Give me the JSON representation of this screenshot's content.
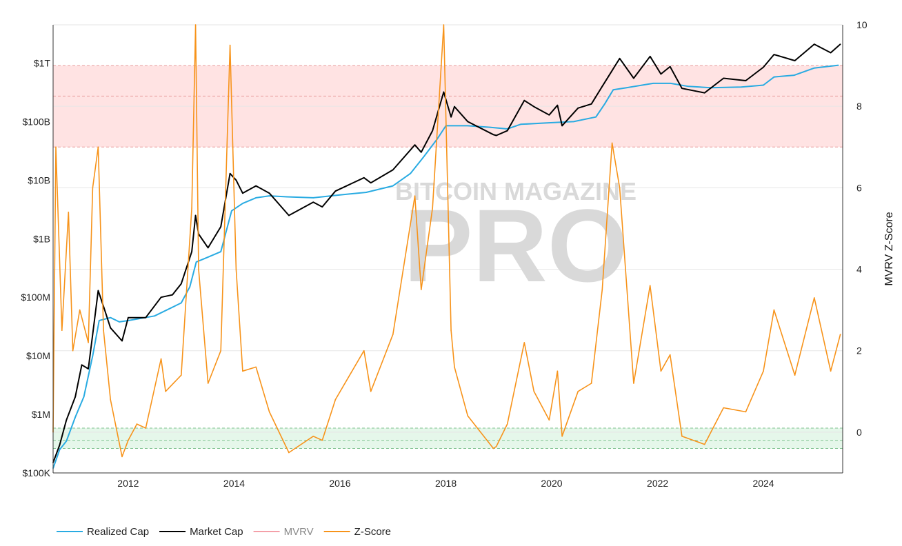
{
  "chart_data": {
    "type": "line",
    "title": "",
    "watermark": {
      "line1": "BITCOIN MAGAZINE",
      "line2": "PRO"
    },
    "x_axis": {
      "type": "date",
      "ticks": [
        "2012",
        "2014",
        "2016",
        "2018",
        "2020",
        "2022",
        "2024"
      ],
      "range": [
        "2010-08-01",
        "2025-07-01"
      ]
    },
    "y_left": {
      "scale": "log",
      "label": "",
      "ticks": [
        "$100K",
        "$1M",
        "$10M",
        "$100M",
        "$1B",
        "$10B",
        "$100B",
        "$1T"
      ],
      "tick_values": [
        100000.0,
        1000000.0,
        10000000.0,
        100000000.0,
        1000000000.0,
        10000000000.0,
        100000000000.0,
        1000000000000.0
      ],
      "range": [
        100000.0,
        4500000000000.0
      ]
    },
    "y_right": {
      "scale": "linear",
      "label": "MVRV Z-Score",
      "ticks": [
        "0",
        "2",
        "4",
        "6",
        "8",
        "10"
      ],
      "tick_values": [
        0,
        2,
        4,
        6,
        8,
        10
      ],
      "range": [
        -1,
        10
      ]
    },
    "bands": [
      {
        "axis": "right",
        "from": 7.0,
        "to": 9.0,
        "color": "#ffe3e3",
        "line_color": "#e89b9b",
        "lines": [
          7.0,
          8.25,
          9.0
        ]
      },
      {
        "axis": "right",
        "from": -0.4,
        "to": 0.1,
        "color": "#e5f7ea",
        "line_color": "#7fc28f",
        "lines": [
          -0.4,
          -0.2,
          0.1
        ]
      }
    ],
    "grid": true,
    "legend": {
      "position": "bottom-left",
      "items": [
        {
          "label": "Realized Cap",
          "color": "#29abe2",
          "visible": true
        },
        {
          "label": "Market Cap",
          "color": "#000000",
          "visible": true
        },
        {
          "label": "MVRV",
          "color": "#f4a0a8",
          "visible": false
        },
        {
          "label": "Z-Score",
          "color": "#f7931a",
          "visible": true
        }
      ]
    },
    "series": [
      {
        "name": "Realized Cap",
        "axis": "left",
        "color": "#29abe2",
        "points": [
          [
            "2010-08-01",
            120000.0
          ],
          [
            "2010-09-15",
            250000.0
          ],
          [
            "2010-11-01",
            350000.0
          ],
          [
            "2011-01-01",
            900000.0
          ],
          [
            "2011-03-01",
            2000000.0
          ],
          [
            "2011-05-01",
            10000000.0
          ],
          [
            "2011-06-15",
            40000000.0
          ],
          [
            "2011-09-01",
            45000000.0
          ],
          [
            "2011-11-01",
            38000000.0
          ],
          [
            "2012-01-01",
            40000000.0
          ],
          [
            "2012-07-01",
            48000000.0
          ],
          [
            "2013-01-01",
            80000000.0
          ],
          [
            "2013-03-01",
            150000000.0
          ],
          [
            "2013-04-15",
            400000000.0
          ],
          [
            "2013-07-01",
            480000000.0
          ],
          [
            "2013-10-01",
            600000000.0
          ],
          [
            "2013-12-15",
            3000000000.0
          ],
          [
            "2014-03-01",
            4000000000.0
          ],
          [
            "2014-06-01",
            5000000000.0
          ],
          [
            "2014-09-01",
            5400000000.0
          ],
          [
            "2015-01-01",
            5200000000.0
          ],
          [
            "2015-07-01",
            5000000000.0
          ],
          [
            "2016-01-01",
            5600000000.0
          ],
          [
            "2016-07-01",
            6200000000.0
          ],
          [
            "2017-01-01",
            8000000000.0
          ],
          [
            "2017-05-01",
            13000000000.0
          ],
          [
            "2017-08-01",
            25000000000.0
          ],
          [
            "2017-11-01",
            50000000000.0
          ],
          [
            "2018-01-01",
            85000000000.0
          ],
          [
            "2018-06-01",
            85000000000.0
          ],
          [
            "2018-11-01",
            80000000000.0
          ],
          [
            "2019-03-01",
            75000000000.0
          ],
          [
            "2019-06-01",
            90000000000.0
          ],
          [
            "2019-12-01",
            95000000000.0
          ],
          [
            "2020-06-01",
            100000000000.0
          ],
          [
            "2020-11-01",
            120000000000.0
          ],
          [
            "2021-01-01",
            200000000000.0
          ],
          [
            "2021-03-01",
            350000000000.0
          ],
          [
            "2021-06-01",
            380000000000.0
          ],
          [
            "2021-12-01",
            450000000000.0
          ],
          [
            "2022-04-01",
            450000000000.0
          ],
          [
            "2022-08-01",
            400000000000.0
          ],
          [
            "2023-01-01",
            380000000000.0
          ],
          [
            "2023-08-01",
            390000000000.0
          ],
          [
            "2024-01-01",
            420000000000.0
          ],
          [
            "2024-03-15",
            580000000000.0
          ],
          [
            "2024-08-01",
            620000000000.0
          ],
          [
            "2024-12-15",
            820000000000.0
          ],
          [
            "2025-06-01",
            920000000000.0
          ]
        ]
      },
      {
        "name": "Market Cap",
        "axis": "left",
        "color": "#000000",
        "points": [
          [
            "2010-08-01",
            150000.0
          ],
          [
            "2010-09-15",
            300000.0
          ],
          [
            "2010-11-01",
            800000.0
          ],
          [
            "2011-01-01",
            2000000.0
          ],
          [
            "2011-02-15",
            7000000.0
          ],
          [
            "2011-04-01",
            6000000.0
          ],
          [
            "2011-06-08",
            130000000.0
          ],
          [
            "2011-07-15",
            70000000.0
          ],
          [
            "2011-09-01",
            30000000.0
          ],
          [
            "2011-11-20",
            18000000.0
          ],
          [
            "2012-01-01",
            45000000.0
          ],
          [
            "2012-05-01",
            45000000.0
          ],
          [
            "2012-08-15",
            100000000.0
          ],
          [
            "2012-11-01",
            110000000.0
          ],
          [
            "2013-01-01",
            170000000.0
          ],
          [
            "2013-03-15",
            600000000.0
          ],
          [
            "2013-04-10",
            2500000000.0
          ],
          [
            "2013-05-01",
            1200000000.0
          ],
          [
            "2013-07-05",
            700000000.0
          ],
          [
            "2013-10-01",
            1600000000.0
          ],
          [
            "2013-12-04",
            13000000000.0
          ],
          [
            "2014-01-15",
            10000000000.0
          ],
          [
            "2014-03-01",
            6000000000.0
          ],
          [
            "2014-06-01",
            8000000000.0
          ],
          [
            "2014-09-01",
            6000000000.0
          ],
          [
            "2015-01-14",
            2500000000.0
          ],
          [
            "2015-07-01",
            4200000000.0
          ],
          [
            "2015-09-01",
            3500000000.0
          ],
          [
            "2015-12-01",
            6500000000.0
          ],
          [
            "2016-06-15",
            11000000000.0
          ],
          [
            "2016-08-01",
            9000000000.0
          ],
          [
            "2017-01-01",
            15000000000.0
          ],
          [
            "2017-06-01",
            40000000000.0
          ],
          [
            "2017-07-15",
            30000000000.0
          ],
          [
            "2017-10-01",
            70000000000.0
          ],
          [
            "2017-12-17",
            320000000000.0
          ],
          [
            "2018-02-06",
            120000000000.0
          ],
          [
            "2018-03-01",
            180000000000.0
          ],
          [
            "2018-06-01",
            100000000000.0
          ],
          [
            "2018-11-25",
            60000000000.0
          ],
          [
            "2018-12-15",
            58000000000.0
          ],
          [
            "2019-03-01",
            70000000000.0
          ],
          [
            "2019-06-26",
            230000000000.0
          ],
          [
            "2019-09-01",
            180000000000.0
          ],
          [
            "2019-12-15",
            130000000000.0
          ],
          [
            "2020-02-10",
            190000000000.0
          ],
          [
            "2020-03-13",
            85000000000.0
          ],
          [
            "2020-07-01",
            170000000000.0
          ],
          [
            "2020-10-01",
            200000000000.0
          ],
          [
            "2020-12-15",
            400000000000.0
          ],
          [
            "2021-04-14",
            1200000000000.0
          ],
          [
            "2021-07-20",
            550000000000.0
          ],
          [
            "2021-11-10",
            1300000000000.0
          ],
          [
            "2022-01-24",
            650000000000.0
          ],
          [
            "2022-03-28",
            870000000000.0
          ],
          [
            "2022-06-18",
            370000000000.0
          ],
          [
            "2022-11-21",
            310000000000.0
          ],
          [
            "2023-04-01",
            550000000000.0
          ],
          [
            "2023-09-01",
            500000000000.0
          ],
          [
            "2024-01-01",
            850000000000.0
          ],
          [
            "2024-03-14",
            1400000000000.0
          ],
          [
            "2024-08-05",
            1100000000000.0
          ],
          [
            "2024-12-17",
            2100000000000.0
          ],
          [
            "2025-04-09",
            1500000000000.0
          ],
          [
            "2025-06-15",
            2100000000000.0
          ]
        ]
      },
      {
        "name": "Z-Score",
        "axis": "right",
        "color": "#f7931a",
        "points": [
          [
            "2010-08-01",
            0.0
          ],
          [
            "2010-08-20",
            7.0
          ],
          [
            "2010-10-01",
            2.5
          ],
          [
            "2010-11-15",
            5.4
          ],
          [
            "2010-12-15",
            2.0
          ],
          [
            "2011-02-01",
            3.0
          ],
          [
            "2011-04-01",
            2.2
          ],
          [
            "2011-05-01",
            6.0
          ],
          [
            "2011-06-08",
            7.0
          ],
          [
            "2011-07-15",
            2.5
          ],
          [
            "2011-09-01",
            0.8
          ],
          [
            "2011-11-20",
            -0.6
          ],
          [
            "2012-01-01",
            -0.2
          ],
          [
            "2012-03-01",
            0.2
          ],
          [
            "2012-05-01",
            0.1
          ],
          [
            "2012-08-15",
            1.8
          ],
          [
            "2012-09-15",
            1.0
          ],
          [
            "2013-01-01",
            1.4
          ],
          [
            "2013-03-15",
            5.5
          ],
          [
            "2013-04-10",
            10.0
          ],
          [
            "2013-05-01",
            4.0
          ],
          [
            "2013-07-05",
            1.2
          ],
          [
            "2013-10-01",
            2.0
          ],
          [
            "2013-12-04",
            9.5
          ],
          [
            "2014-01-15",
            4.0
          ],
          [
            "2014-03-01",
            1.5
          ],
          [
            "2014-06-01",
            1.6
          ],
          [
            "2014-09-01",
            0.5
          ],
          [
            "2015-01-14",
            -0.5
          ],
          [
            "2015-07-01",
            -0.1
          ],
          [
            "2015-09-01",
            -0.2
          ],
          [
            "2015-12-01",
            0.8
          ],
          [
            "2016-06-15",
            2.0
          ],
          [
            "2016-08-01",
            1.0
          ],
          [
            "2017-01-01",
            2.4
          ],
          [
            "2017-06-01",
            5.8
          ],
          [
            "2017-07-15",
            3.5
          ],
          [
            "2017-10-01",
            5.5
          ],
          [
            "2017-12-17",
            10.0
          ],
          [
            "2018-02-06",
            2.5
          ],
          [
            "2018-03-01",
            1.6
          ],
          [
            "2018-06-01",
            0.4
          ],
          [
            "2018-11-25",
            -0.4
          ],
          [
            "2018-12-15",
            -0.35
          ],
          [
            "2019-03-01",
            0.2
          ],
          [
            "2019-06-26",
            2.2
          ],
          [
            "2019-09-01",
            1.0
          ],
          [
            "2019-12-15",
            0.3
          ],
          [
            "2020-02-10",
            1.5
          ],
          [
            "2020-03-13",
            -0.1
          ],
          [
            "2020-07-01",
            1.0
          ],
          [
            "2020-10-01",
            1.2
          ],
          [
            "2020-12-15",
            3.5
          ],
          [
            "2021-02-21",
            7.1
          ],
          [
            "2021-04-14",
            6.0
          ],
          [
            "2021-07-20",
            1.2
          ],
          [
            "2021-11-10",
            3.6
          ],
          [
            "2022-01-24",
            1.5
          ],
          [
            "2022-03-28",
            1.9
          ],
          [
            "2022-06-18",
            -0.1
          ],
          [
            "2022-11-21",
            -0.3
          ],
          [
            "2023-04-01",
            0.6
          ],
          [
            "2023-09-01",
            0.5
          ],
          [
            "2024-01-01",
            1.5
          ],
          [
            "2024-03-14",
            3.0
          ],
          [
            "2024-08-05",
            1.4
          ],
          [
            "2024-12-17",
            3.3
          ],
          [
            "2025-04-09",
            1.5
          ],
          [
            "2025-06-15",
            2.4
          ]
        ]
      }
    ]
  }
}
